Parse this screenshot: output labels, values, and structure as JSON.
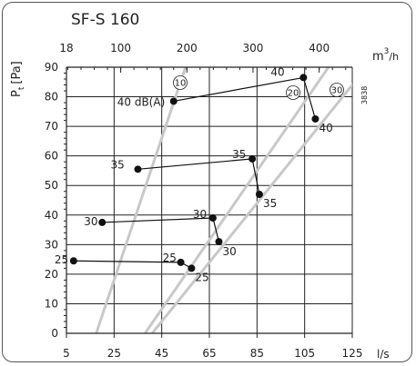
{
  "title": "SF-S 160",
  "code": "3838",
  "chart_data": {
    "type": "scatter",
    "title": "SF-S 160",
    "ylabel": "Pt [Pa]",
    "ylabel_main": "P",
    "ylabel_sub": "t",
    "ylabel_unit": "[Pa]",
    "x_unit_bottom": "l/s",
    "x_unit_top_base": "m",
    "x_unit_top_exp": "3",
    "x_unit_top_den": "/h",
    "xlim": [
      5,
      125
    ],
    "ylim": [
      0,
      90
    ],
    "x_ticks_bottom": [
      "5",
      "25",
      "45",
      "65",
      "85",
      "105",
      "125"
    ],
    "x_ticks_top": [
      "18",
      "100",
      "200",
      "300",
      "400"
    ],
    "y_ticks": [
      "0",
      "10",
      "20",
      "30",
      "40",
      "50",
      "60",
      "70",
      "80",
      "90"
    ],
    "damper_lines": [
      {
        "name": "10",
        "p1": [
          17.5,
          0
        ],
        "p2": [
          55,
          90
        ]
      },
      {
        "name": "20",
        "p1": [
          38,
          0
        ],
        "p2": [
          115,
          90
        ]
      },
      {
        "name": "30",
        "p1": [
          41,
          0
        ],
        "p2": [
          131,
          90
        ]
      }
    ],
    "sound_series": [
      {
        "name": "40",
        "points": [
          {
            "x": 50,
            "y": 78.5,
            "label": "40 dB(A)"
          },
          {
            "x": 104.5,
            "y": 86.5,
            "label": "40"
          },
          {
            "x": 109.5,
            "y": 72.5,
            "label": "40"
          }
        ]
      },
      {
        "name": "35",
        "points": [
          {
            "x": 35,
            "y": 55.5,
            "label": "35"
          },
          {
            "x": 83,
            "y": 59,
            "label": "35"
          },
          {
            "x": 86,
            "y": 47,
            "label": "35"
          }
        ]
      },
      {
        "name": "30",
        "points": [
          {
            "x": 20,
            "y": 37.5,
            "label": "30"
          },
          {
            "x": 66.5,
            "y": 39,
            "label": "30"
          },
          {
            "x": 69,
            "y": 31,
            "label": "30"
          }
        ]
      },
      {
        "name": "25",
        "points": [
          {
            "x": 8,
            "y": 24.5,
            "label": "25"
          },
          {
            "x": 53,
            "y": 24,
            "label": "25"
          },
          {
            "x": 57.5,
            "y": 22,
            "label": "25"
          }
        ]
      }
    ],
    "colors": {
      "damper": "#c8c8c8",
      "grid": "#222222",
      "series": "#111111"
    }
  }
}
